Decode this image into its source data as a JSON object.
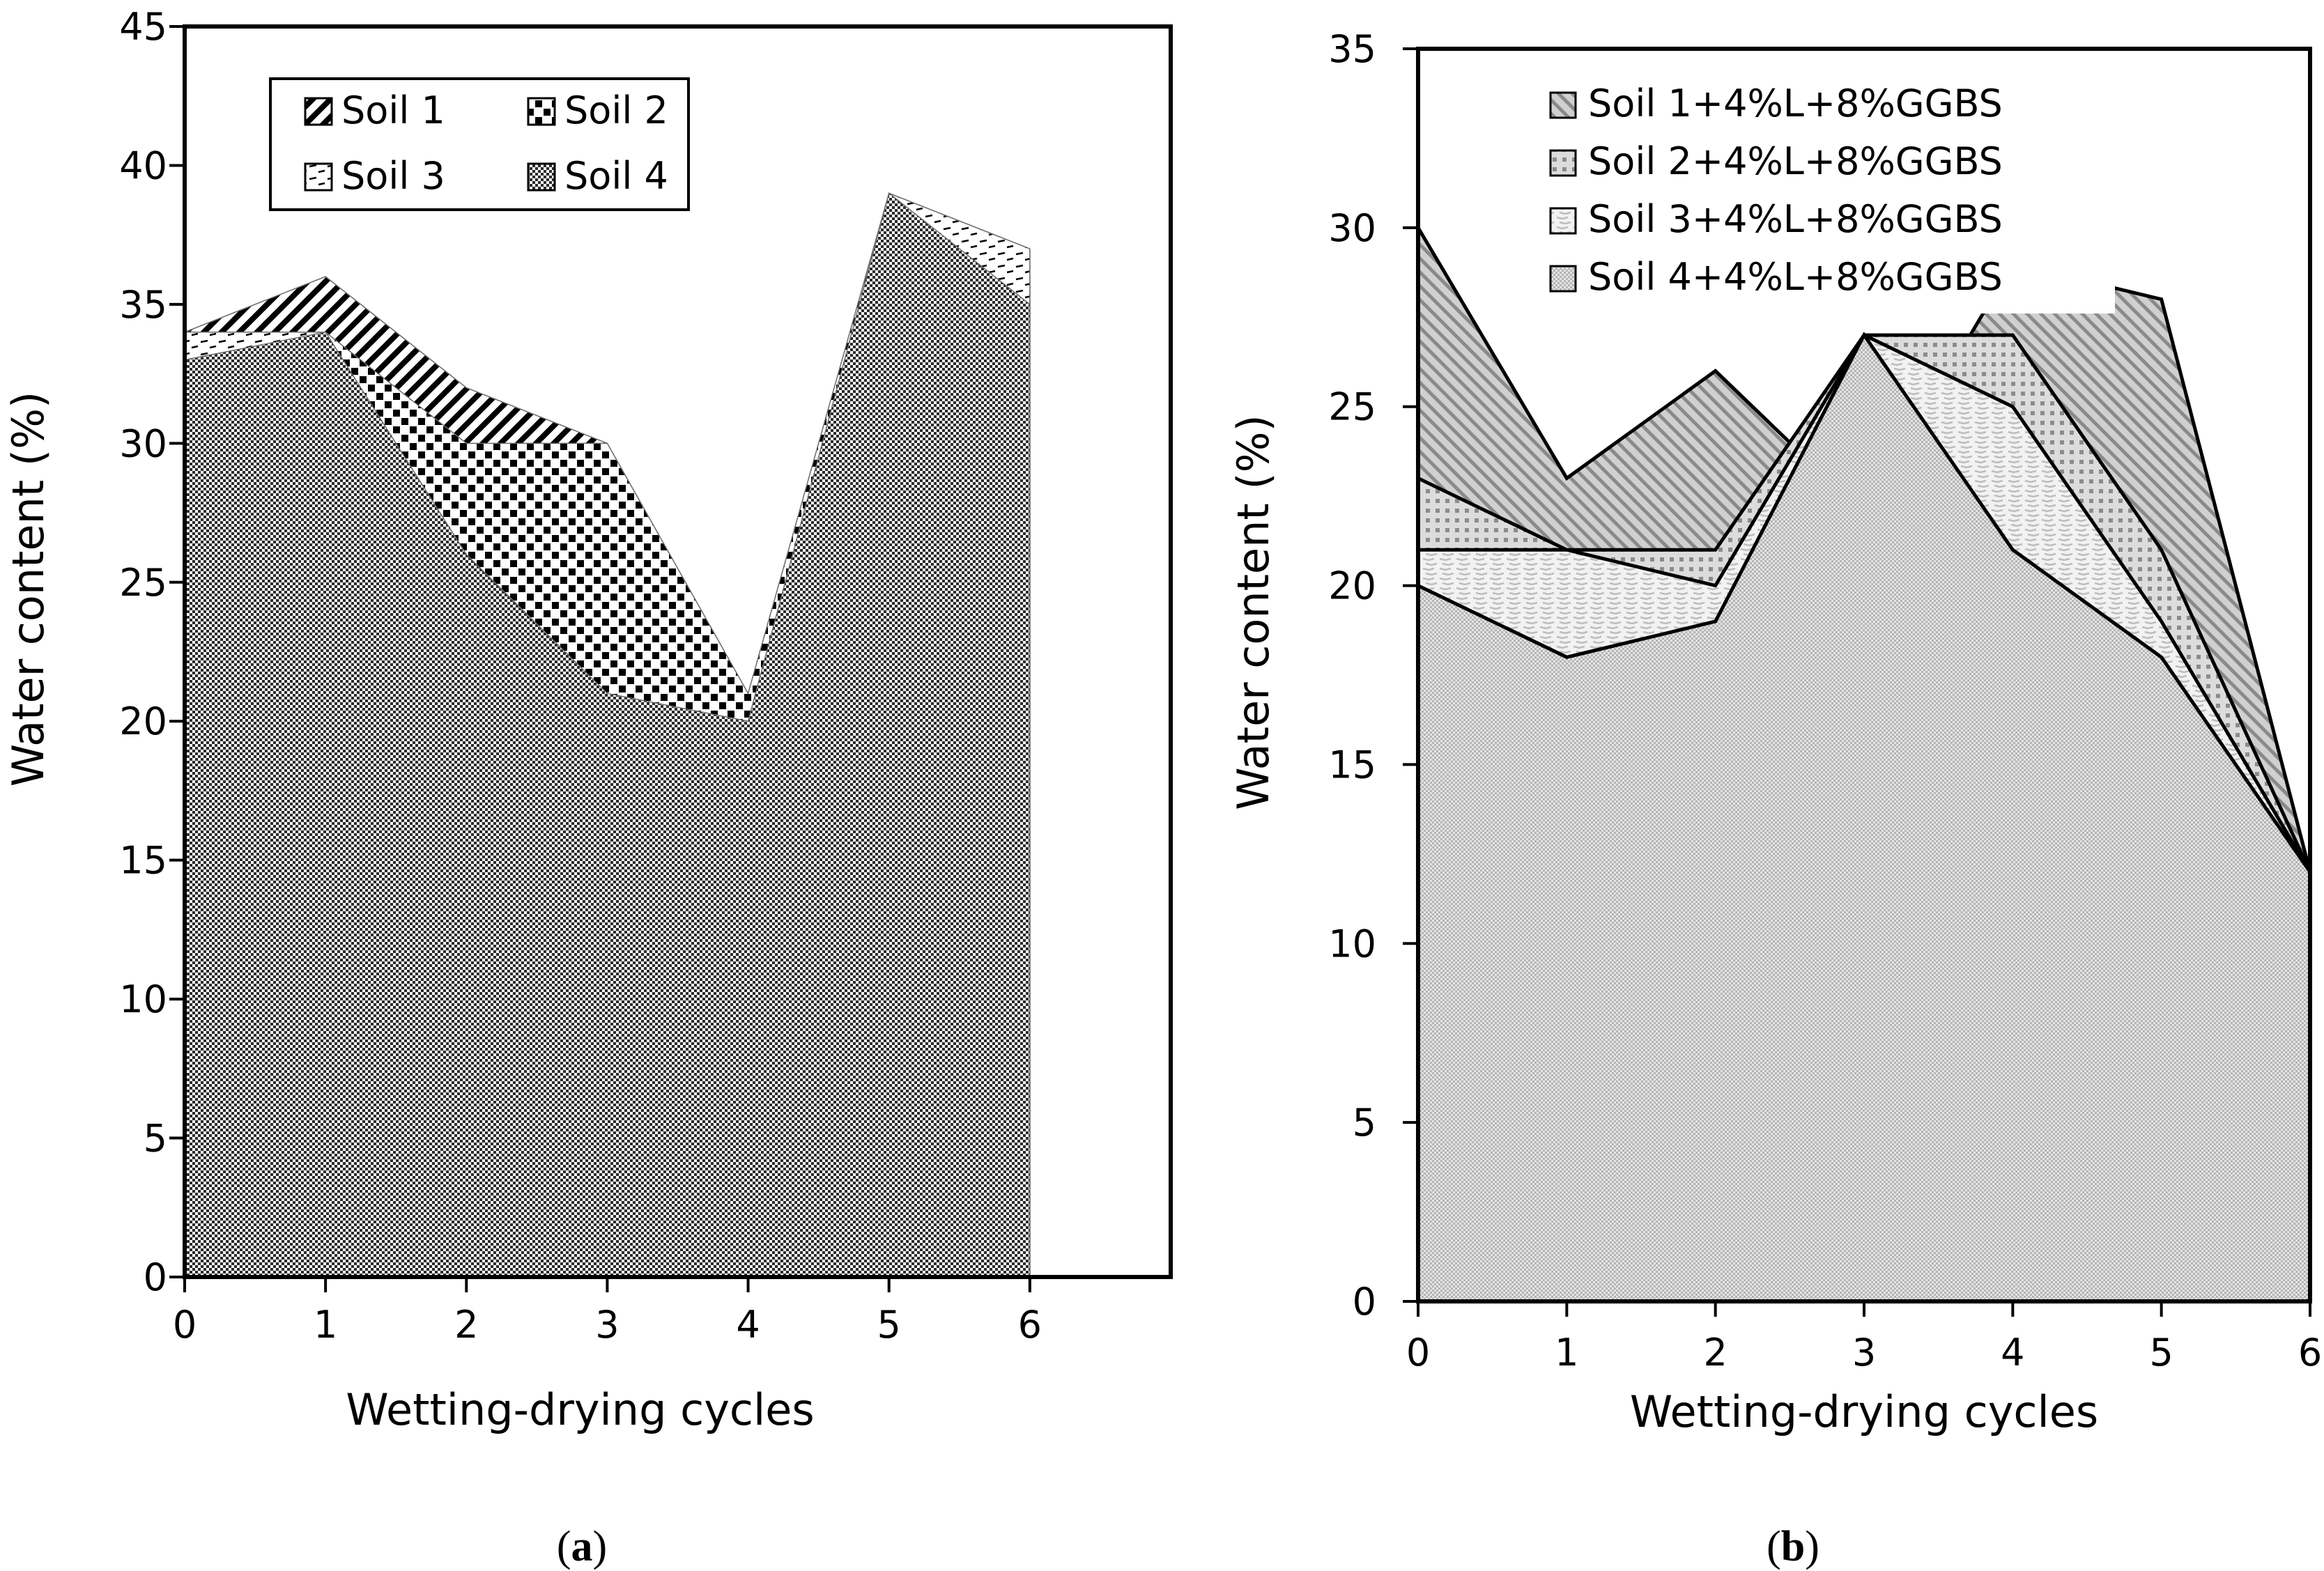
{
  "chart_data": [
    {
      "type": "area",
      "panel_label": "(a)",
      "panel_letter": "a",
      "xlabel": "Wetting-drying cycles",
      "ylabel": "Water content (%)",
      "xlim": [
        0,
        7
      ],
      "ylim": [
        0,
        45
      ],
      "x_ticks": [
        0,
        1,
        2,
        3,
        4,
        5,
        6
      ],
      "x_tick_labels": [
        "0",
        "1",
        "2",
        "3",
        "4",
        "5",
        "6"
      ],
      "y_ticks": [
        0,
        5,
        10,
        15,
        20,
        25,
        30,
        35,
        40,
        45
      ],
      "y_tick_labels": [
        "0",
        "5",
        "10",
        "15",
        "20",
        "25",
        "30",
        "35",
        "40",
        "45"
      ],
      "grid": false,
      "legend_position": "top-left",
      "x": [
        0,
        1,
        2,
        3,
        4,
        5,
        6
      ],
      "series": [
        {
          "name": "Soil 1",
          "pattern": "diag-stripes",
          "values": [
            34,
            36,
            32,
            30,
            20,
            39,
            37
          ]
        },
        {
          "name": "Soil 2",
          "pattern": "checker",
          "values": [
            33,
            34,
            30,
            30,
            21,
            39,
            36
          ]
        },
        {
          "name": "Soil 3",
          "pattern": "dashes",
          "values": [
            34,
            34,
            25,
            21,
            19,
            39,
            37
          ]
        },
        {
          "name": "Soil 4",
          "pattern": "fine-checker",
          "values": [
            33,
            34,
            26,
            21,
            20,
            39,
            35
          ]
        }
      ]
    },
    {
      "type": "area",
      "panel_label": "(b)",
      "panel_letter": "b",
      "xlabel": "Wetting-drying cycles",
      "ylabel": "Water content (%)",
      "xlim": [
        0,
        6
      ],
      "ylim": [
        0,
        35
      ],
      "x_ticks": [
        0,
        1,
        2,
        3,
        4,
        5,
        6
      ],
      "x_tick_labels": [
        "0",
        "1",
        "2",
        "3",
        "4",
        "5",
        "6"
      ],
      "y_ticks": [
        0,
        5,
        10,
        15,
        20,
        25,
        30,
        35
      ],
      "y_tick_labels": [
        "0",
        "5",
        "10",
        "15",
        "20",
        "25",
        "30",
        "35"
      ],
      "grid": false,
      "legend_position": "top-center",
      "x": [
        0,
        1,
        2,
        3,
        4,
        5,
        6
      ],
      "series": [
        {
          "name": "Soil 1+4%L+8%GGBS",
          "pattern": "gray-diag",
          "values": [
            30,
            23,
            26,
            22,
            29,
            28,
            12
          ]
        },
        {
          "name": "Soil 2+4%L+8%GGBS",
          "pattern": "gray-dots",
          "values": [
            23,
            21,
            21,
            27,
            27,
            21,
            12
          ]
        },
        {
          "name": "Soil 3+4%L+8%GGBS",
          "pattern": "gray-dashes",
          "values": [
            21,
            21,
            20,
            27,
            25,
            19,
            12
          ]
        },
        {
          "name": "Soil 4+4%L+8%GGBS",
          "pattern": "gray-fine",
          "values": [
            20,
            18,
            19,
            27,
            21,
            18,
            12
          ]
        }
      ]
    }
  ]
}
